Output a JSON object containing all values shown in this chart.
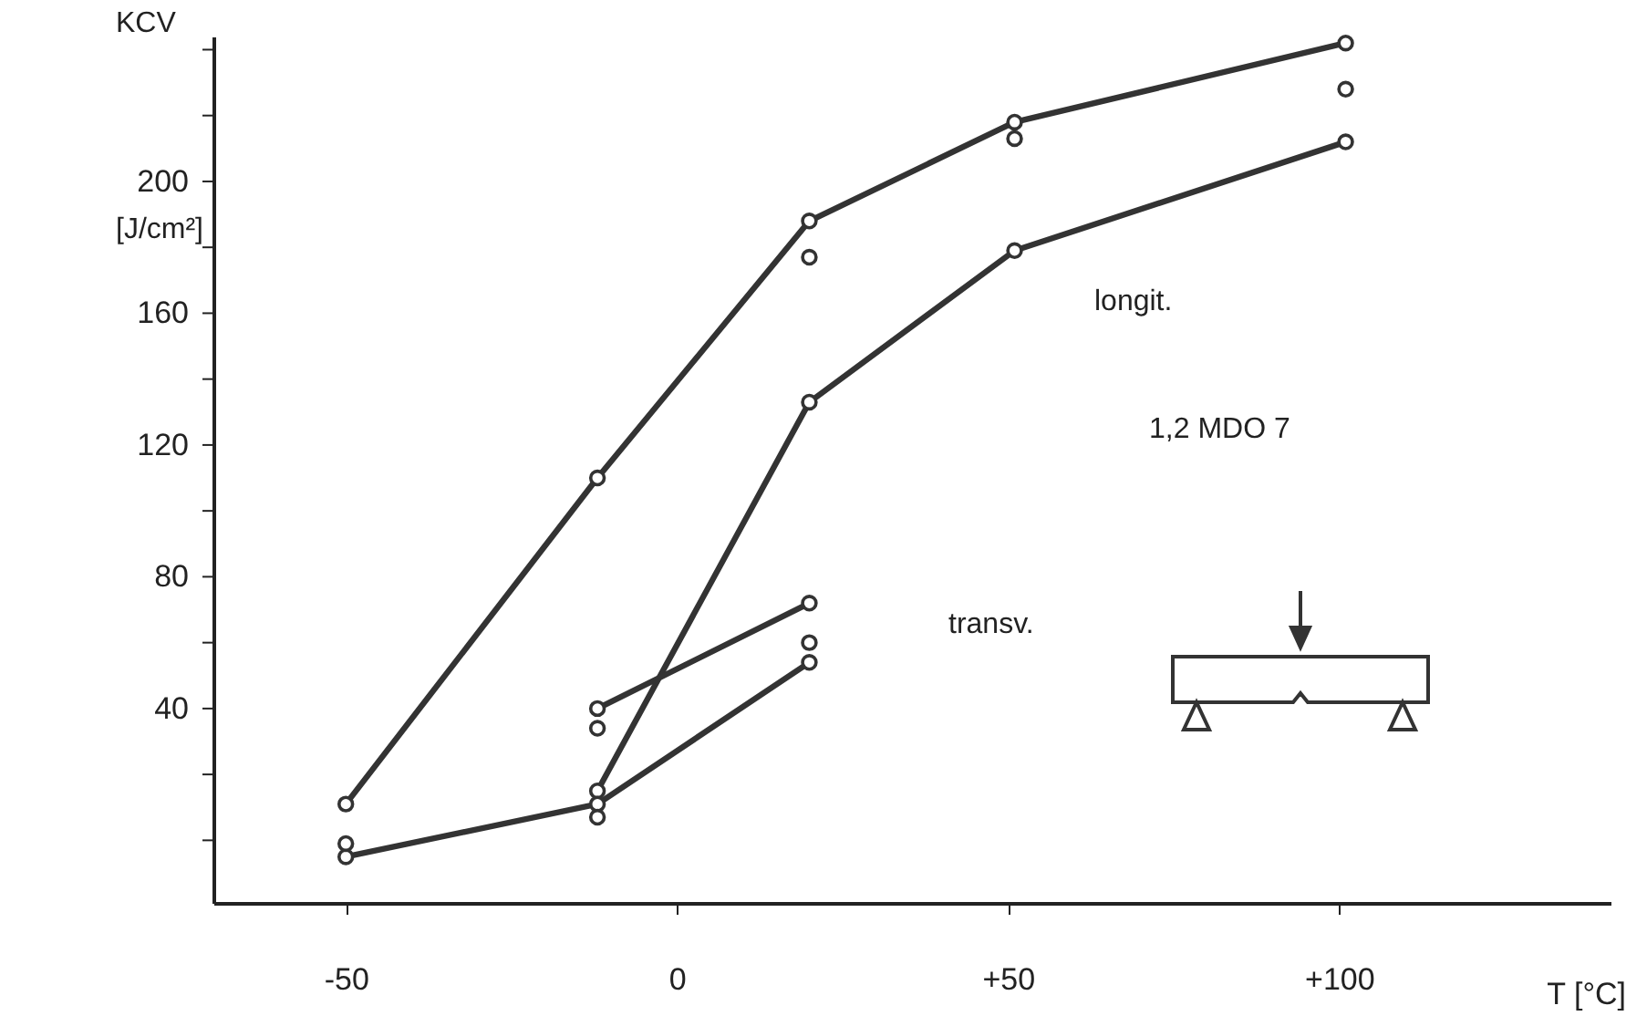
{
  "chart_data": {
    "type": "line",
    "xlabel": "T [°C]",
    "ylabel": "KCV [J/cm²]",
    "xlim": [
      -70,
      141
    ],
    "ylim": [
      -19,
      244
    ],
    "xticks": [
      -50,
      0,
      {
        "value": 50,
        "label": "+50"
      },
      {
        "value": 100,
        "label": "+100"
      }
    ],
    "yticks": [
      {
        "value": 0,
        "label": null
      },
      {
        "value": 20,
        "label": null
      },
      40,
      {
        "value": 60,
        "label": null
      },
      80,
      {
        "value": 100,
        "label": null
      },
      120,
      {
        "value": 140,
        "label": null
      },
      160,
      {
        "value": 180,
        "label": null
      },
      200,
      {
        "value": 220,
        "label": null
      },
      {
        "value": 240,
        "label": null
      }
    ],
    "marker": "circle",
    "line_style": "solid",
    "series": [
      {
        "type": "line",
        "color": "#333333",
        "x": [
          -50,
          -12,
          20,
          51,
          101
        ],
        "values": [
          11,
          110,
          188,
          218,
          242
        ]
      },
      {
        "type": "line",
        "color": "#333333",
        "x": [
          -12,
          20,
          51,
          101
        ],
        "values": [
          15,
          133,
          179,
          212
        ]
      },
      {
        "type": "line",
        "color": "#333333",
        "x": [
          -50,
          -12,
          20
        ],
        "values": [
          -5,
          11,
          54
        ]
      },
      {
        "type": "line",
        "color": "#333333",
        "x": [
          -12,
          20
        ],
        "values": [
          40,
          72
        ]
      },
      {
        "type": "scatter",
        "color": "#333333",
        "x": [
          -50,
          -12,
          -12,
          20,
          20,
          51,
          101
        ],
        "values": [
          -1,
          34,
          7,
          60,
          177,
          213,
          228
        ]
      }
    ],
    "annotations": [
      "longit.",
      "transv.",
      "1,2  MDO 7"
    ]
  }
}
